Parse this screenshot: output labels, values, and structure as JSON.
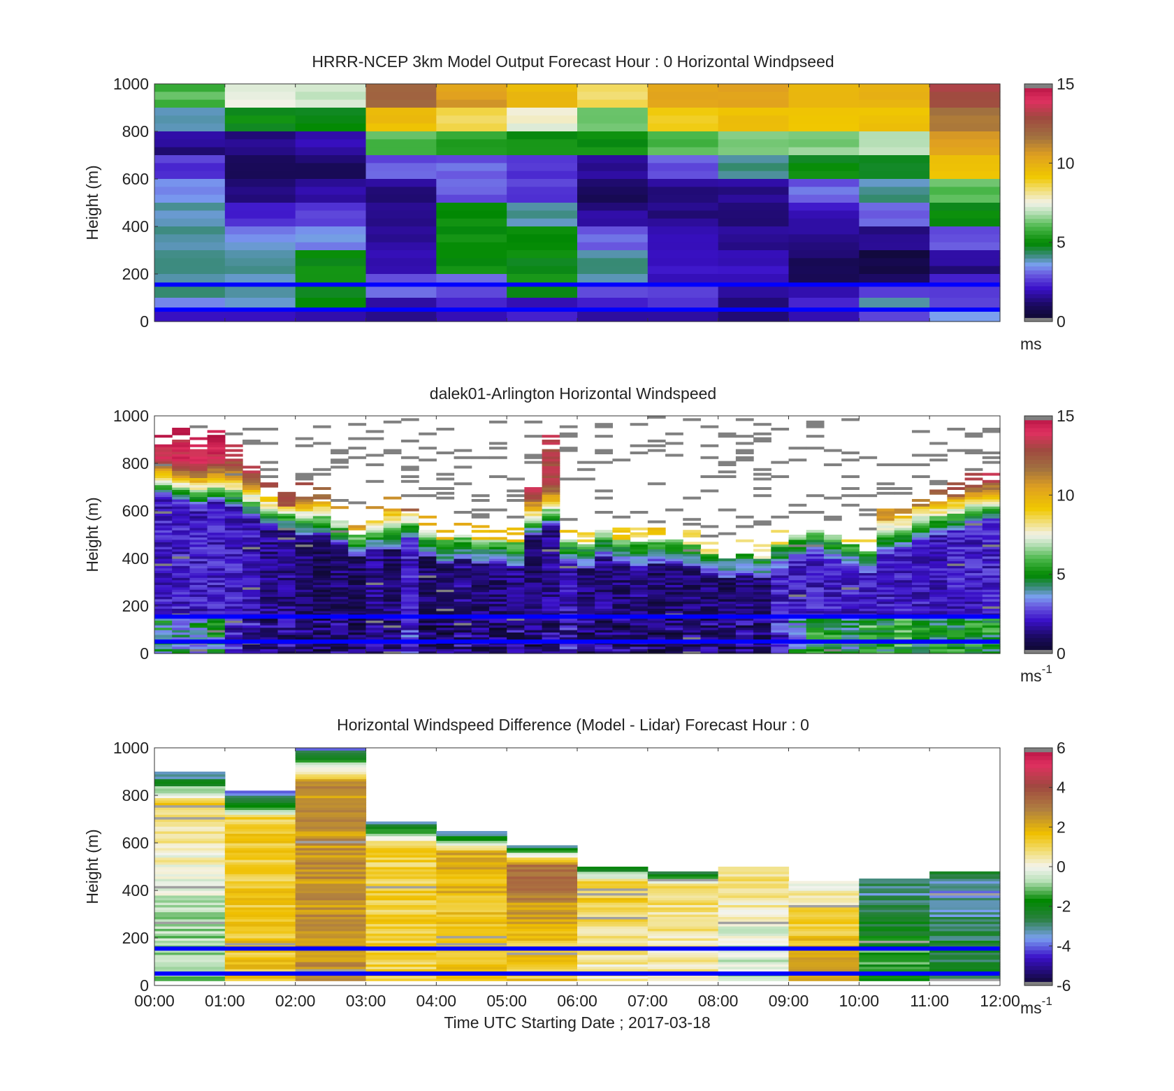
{
  "chart_data": [
    {
      "type": "heatmap",
      "title": "HRRR-NCEP 3km Model Output   Forecast Hour : 0 Horizontal Windpseed",
      "ylabel": "Height (m)",
      "ylim": [
        0,
        1000
      ],
      "yticks": [
        "0",
        "200",
        "400",
        "600",
        "800",
        "1000"
      ],
      "x_start": "00:00",
      "x_end": "12:00",
      "colorbar": {
        "min": 0,
        "max": 15,
        "ticks": [
          "0",
          "5",
          "10",
          "15"
        ],
        "unit": "ms",
        "unit_sup": ""
      },
      "reference_heights_m": [
        155,
        50
      ],
      "reference_line_color": "#0000ff",
      "height_bins_m": [
        1000,
        900,
        800,
        700,
        600,
        500,
        400,
        300,
        200,
        150,
        100,
        50,
        0
      ],
      "columns": [
        {
          "time": "00:00",
          "speeds": [
            6,
            4,
            1.5,
            2.5,
            3.5,
            4,
            4,
            4,
            4,
            4,
            3.5,
            2
          ]
        },
        {
          "time": "01:00",
          "speeds": [
            7.5,
            5,
            1.5,
            1,
            1.5,
            2.5,
            3.5,
            4,
            4,
            4,
            3.5,
            2
          ]
        },
        {
          "time": "02:00",
          "speeds": [
            7,
            5,
            1.8,
            1,
            1.8,
            2.5,
            3.5,
            5,
            5,
            5,
            5,
            2
          ]
        },
        {
          "time": "03:00",
          "speeds": [
            12,
            9.5,
            6,
            3,
            1.5,
            1.5,
            1.5,
            2,
            3,
            3,
            2,
            1.5
          ]
        },
        {
          "time": "04:00",
          "speeds": [
            10.5,
            8.5,
            5.5,
            3,
            3,
            5,
            5,
            5,
            3,
            3,
            2.5,
            2
          ]
        },
        {
          "time": "05:00",
          "speeds": [
            9.5,
            7.5,
            5,
            2.5,
            2.5,
            4,
            5,
            5,
            5,
            5,
            2,
            2
          ]
        },
        {
          "time": "06:00",
          "speeds": [
            8.5,
            6.5,
            5,
            1.5,
            1,
            1.5,
            3,
            4,
            4,
            3,
            2,
            1.5
          ]
        },
        {
          "time": "07:00",
          "speeds": [
            10.5,
            9,
            6,
            3,
            1.5,
            1.5,
            2,
            2,
            2,
            2.5,
            2.5,
            2
          ]
        },
        {
          "time": "08:00",
          "speeds": [
            10.5,
            9.5,
            6.5,
            4,
            1.5,
            1.5,
            1.5,
            2,
            2,
            1.5,
            1.5,
            1.5
          ]
        },
        {
          "time": "09:00",
          "speeds": [
            10,
            9,
            6.5,
            5,
            3,
            2,
            1.5,
            1,
            1,
            2,
            2.5,
            2
          ]
        },
        {
          "time": "10:00",
          "speeds": [
            10,
            9.5,
            7,
            5,
            4,
            3,
            1.5,
            0.5,
            1,
            2.5,
            4,
            3
          ]
        },
        {
          "time": "11:00",
          "speeds": [
            13,
            11.5,
            10.5,
            9.5,
            6,
            5,
            3,
            1.5,
            2,
            2.5,
            3,
            3.5
          ]
        }
      ]
    },
    {
      "type": "heatmap",
      "title": "dalek01-Arlington  Horizontal Windspeed",
      "ylabel": "Height (m)",
      "ylim": [
        0,
        1000
      ],
      "yticks": [
        "0",
        "200",
        "400",
        "600",
        "800",
        "1000"
      ],
      "x_start": "00:00",
      "x_end": "12:00",
      "colorbar": {
        "min": 0,
        "max": 15,
        "ticks": [
          "0",
          "5",
          "10",
          "15"
        ],
        "unit": "ms",
        "unit_sup": "-1"
      },
      "reference_heights_m": [
        155,
        50
      ],
      "reference_line_color": "#0000ff",
      "time_steps_h": 48,
      "valid_top_m": [
        880,
        900,
        860,
        880,
        820,
        760,
        660,
        620,
        660,
        640,
        560,
        500,
        560,
        600,
        590,
        520,
        480,
        500,
        480,
        480,
        470,
        700,
        860,
        480,
        460,
        520,
        480,
        470,
        480,
        480,
        460,
        420,
        400,
        420,
        400,
        460,
        500,
        520,
        500,
        460,
        430,
        560,
        580,
        620,
        640,
        660,
        700,
        720
      ],
      "jet_height_m": [
        720,
        700,
        680,
        700,
        680,
        640,
        600,
        580,
        560,
        560,
        520,
        470,
        500,
        500,
        540,
        470,
        440,
        460,
        440,
        440,
        430,
        560,
        600,
        440,
        420,
        470,
        440,
        430,
        440,
        440,
        430,
        400,
        380,
        400,
        380,
        420,
        460,
        480,
        460,
        430,
        400,
        480,
        500,
        540,
        560,
        580,
        600,
        620
      ],
      "jet_speed": [
        14,
        14,
        13.5,
        14,
        13,
        13,
        12.5,
        12,
        12,
        11,
        10.5,
        10,
        10.5,
        10,
        12,
        9.5,
        9,
        9.5,
        9,
        9,
        9,
        13,
        13,
        9,
        8,
        9,
        8.5,
        8,
        9,
        8.5,
        8,
        7.5,
        7,
        8,
        7.5,
        8,
        9,
        9.5,
        9,
        8.5,
        8,
        10,
        10.5,
        11,
        11.5,
        12,
        12.5,
        13
      ],
      "low_level_speed": [
        4.5,
        4,
        4,
        4.5,
        2.5,
        2,
        1.5,
        1.5,
        1.2,
        1,
        1.2,
        1,
        1.5,
        1.2,
        2.5,
        1,
        1,
        1.5,
        1.2,
        1.2,
        1.5,
        1.2,
        1.5,
        2,
        1.2,
        1.5,
        1.2,
        1.5,
        1,
        1.2,
        1.2,
        1.2,
        1,
        1.5,
        1.2,
        2.5,
        4,
        5,
        5,
        4.5,
        5.5,
        5,
        5.5,
        5,
        5,
        5,
        5,
        5
      ]
    },
    {
      "type": "heatmap",
      "title": "Horizontal Windspeed Difference (Model - Lidar) Forecast Hour : 0",
      "ylabel": "Height (m)",
      "xlabel": "Time UTC  Starting Date ; 2017-03-18",
      "ylim": [
        0,
        1000
      ],
      "yticks": [
        "0",
        "200",
        "400",
        "600",
        "800",
        "1000"
      ],
      "xticks": [
        "00:00",
        "01:00",
        "02:00",
        "03:00",
        "04:00",
        "05:00",
        "06:00",
        "07:00",
        "08:00",
        "09:00",
        "10:00",
        "11:00",
        "12:00"
      ],
      "colorbar": {
        "min": -6,
        "max": 6,
        "ticks": [
          "-6",
          "-4",
          "-2",
          "0",
          "2",
          "4",
          "6"
        ],
        "unit": "ms",
        "unit_sup": "-1"
      },
      "reference_heights_m": [
        155,
        50
      ],
      "reference_line_color": "#0000ff",
      "columns": [
        {
          "time": "00:00",
          "top_m": 900,
          "low_diff": -0.8,
          "mid_diff": 1.2,
          "high_diff": -4
        },
        {
          "time": "01:00",
          "top_m": 820,
          "low_diff": 1.5,
          "mid_diff": 1.2,
          "high_diff": -4.5
        },
        {
          "time": "02:00",
          "top_m": 1000,
          "low_diff": 2.5,
          "mid_diff": 2.5,
          "high_diff": -4
        },
        {
          "time": "03:00",
          "top_m": 690,
          "low_diff": 1.2,
          "mid_diff": 1.2,
          "high_diff": -4
        },
        {
          "time": "04:00",
          "top_m": 650,
          "low_diff": 1.5,
          "mid_diff": 2,
          "high_diff": -4
        },
        {
          "time": "05:00",
          "top_m": 590,
          "low_diff": 1.5,
          "mid_diff": 3.5,
          "high_diff": -4
        },
        {
          "time": "06:00",
          "top_m": 500,
          "low_diff": 0.5,
          "mid_diff": 1.5,
          "high_diff": -3
        },
        {
          "time": "07:00",
          "top_m": 480,
          "low_diff": 0.5,
          "mid_diff": 1,
          "high_diff": -3
        },
        {
          "time": "08:00",
          "top_m": 500,
          "low_diff": -0.5,
          "mid_diff": 0.8,
          "high_diff": 0.3
        },
        {
          "time": "09:00",
          "top_m": 440,
          "low_diff": 2,
          "mid_diff": 0.5,
          "high_diff": 0.2
        },
        {
          "time": "10:00",
          "top_m": 450,
          "low_diff": -1.5,
          "mid_diff": -3,
          "high_diff": -2.5
        },
        {
          "time": "11:00",
          "top_m": 480,
          "low_diff": -2.5,
          "mid_diff": -3.5,
          "high_diff": -2
        }
      ]
    }
  ]
}
